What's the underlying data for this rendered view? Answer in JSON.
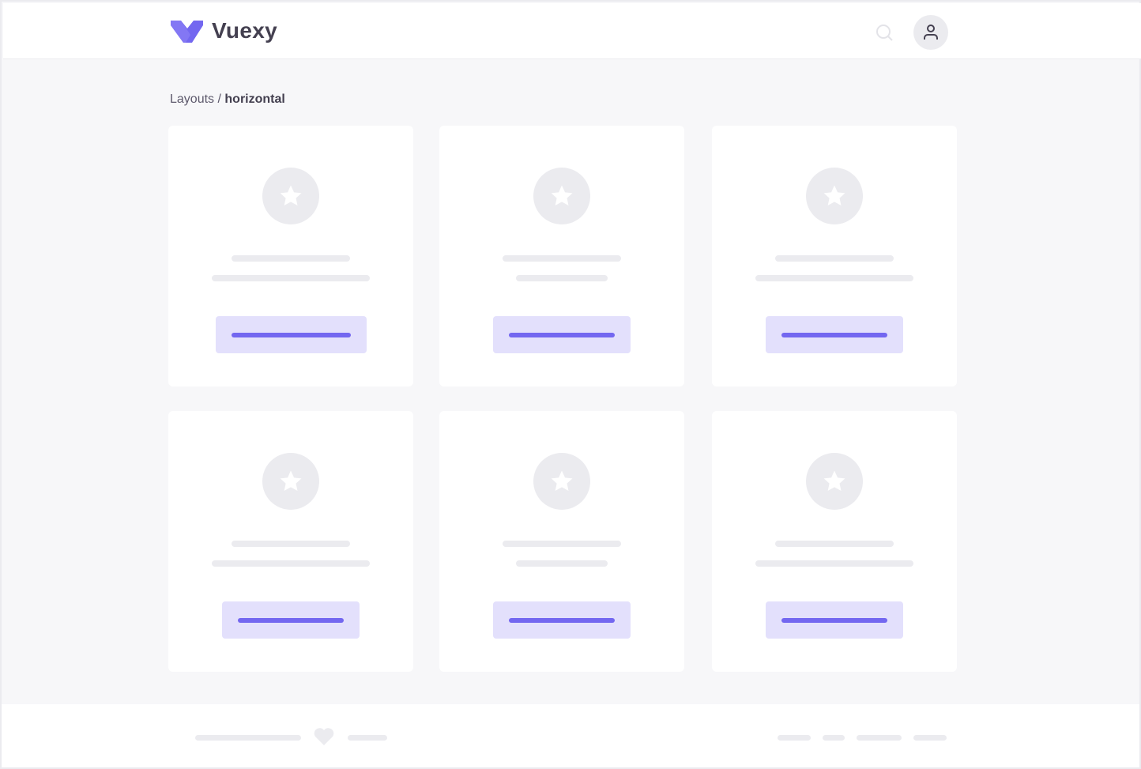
{
  "header": {
    "brand": "Vuexy",
    "logo_color": "#7367f0",
    "search_icon": "search-icon",
    "avatar_icon": "user-icon"
  },
  "breadcrumb": {
    "parent": "Layouts",
    "separator": " / ",
    "current": "horizontal"
  },
  "cards": {
    "count": 6,
    "icon": "star-icon"
  },
  "footer": {
    "icon": "heart-icon"
  },
  "colors": {
    "primary": "#7367f0",
    "primary_light": "#e3e0fc",
    "skeleton": "#ebebef",
    "background": "#f7f7f9",
    "text": "#444050"
  }
}
